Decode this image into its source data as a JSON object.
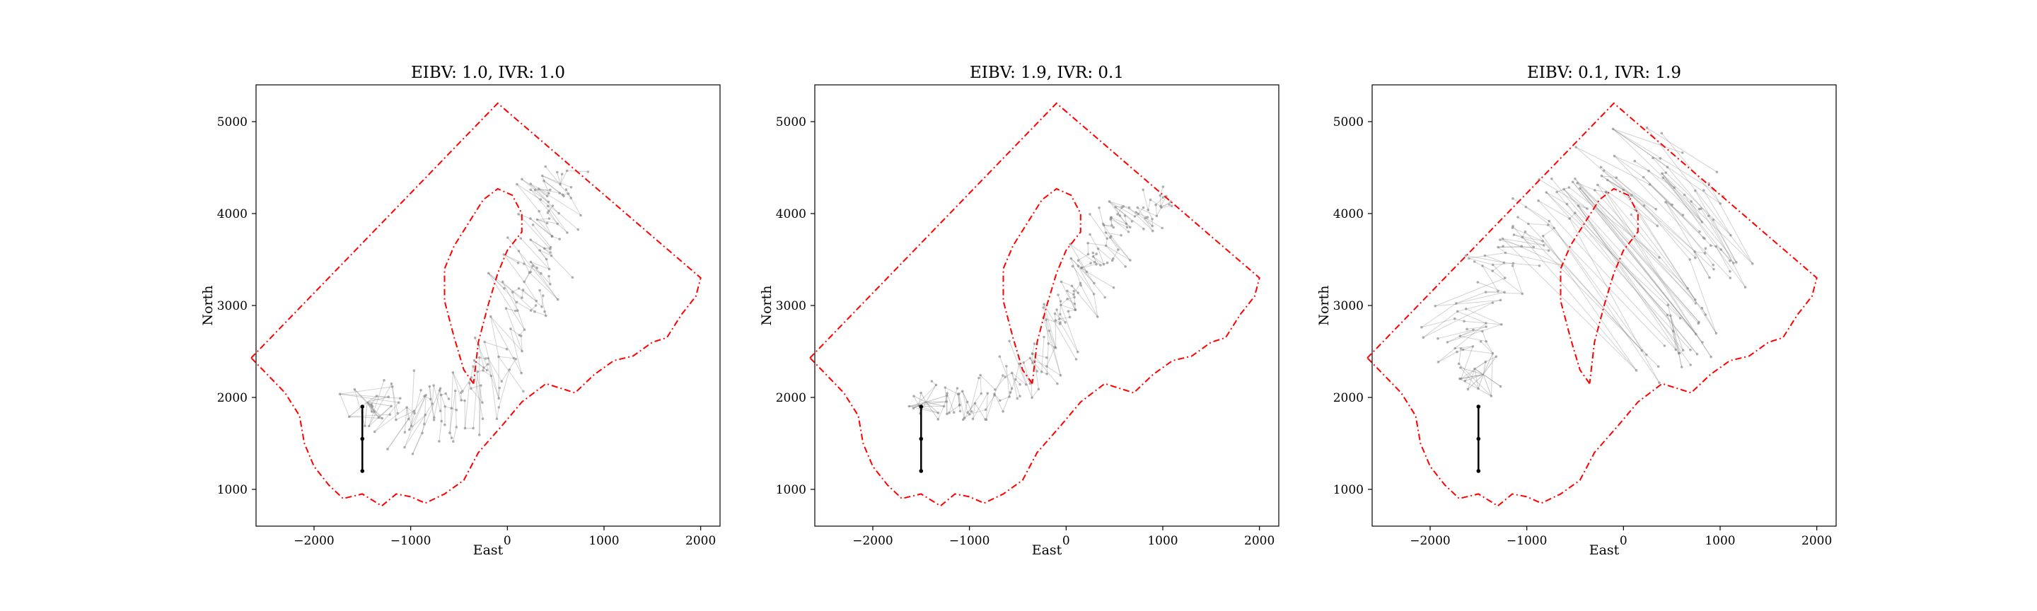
{
  "figure": {
    "background": "#ffffff",
    "boundary_color": "#ff0000",
    "path_color": "#808080",
    "start_color": "#000000"
  },
  "chart_data": [
    {
      "type": "line",
      "title": "EIBV: 1.0, IVR: 1.0",
      "xlabel": "East",
      "ylabel": "North",
      "xlim": [
        -2600,
        2200
      ],
      "ylim": [
        600,
        5400
      ],
      "xticks": [
        -2000,
        -1000,
        0,
        1000,
        2000
      ],
      "yticks": [
        1000,
        2000,
        3000,
        4000,
        5000
      ],
      "xtick_labels": [
        "−2000",
        "−1000",
        "0",
        "1000",
        "2000"
      ],
      "ytick_labels": [
        "1000",
        "2000",
        "3000",
        "4000",
        "5000"
      ],
      "grid": false,
      "series": [
        {
          "role": "trajectories",
          "seed": 11,
          "count": 200,
          "waypoints": [
            [
              -1450,
              1950
            ],
            [
              -1100,
              1800
            ],
            [
              -750,
              1700
            ],
            [
              -400,
              1900
            ],
            [
              -150,
              2400
            ],
            [
              150,
              3000
            ],
            [
              350,
              3600
            ],
            [
              450,
              4100
            ],
            [
              450,
              4450
            ]
          ],
          "spread": 320
        }
      ]
    },
    {
      "type": "line",
      "title": "EIBV: 1.9, IVR: 0.1",
      "xlabel": "East",
      "ylabel": "North",
      "xlim": [
        -2600,
        2200
      ],
      "ylim": [
        600,
        5400
      ],
      "xticks": [
        -2000,
        -1000,
        0,
        1000,
        2000
      ],
      "yticks": [
        1000,
        2000,
        3000,
        4000,
        5000
      ],
      "xtick_labels": [
        "−2000",
        "−1000",
        "0",
        "1000",
        "2000"
      ],
      "ytick_labels": [
        "1000",
        "2000",
        "3000",
        "4000",
        "5000"
      ],
      "grid": false,
      "series": [
        {
          "role": "trajectories",
          "seed": 23,
          "count": 200,
          "waypoints": [
            [
              -1450,
              1950
            ],
            [
              -1000,
              1950
            ],
            [
              -500,
              2100
            ],
            [
              -150,
              2600
            ],
            [
              150,
              3200
            ],
            [
              350,
              3700
            ],
            [
              600,
              4000
            ],
            [
              1000,
              4100
            ]
          ],
          "spread": 240
        }
      ]
    },
    {
      "type": "line",
      "title": "EIBV: 0.1, IVR: 1.9",
      "xlabel": "East",
      "ylabel": "North",
      "xlim": [
        -2600,
        2200
      ],
      "ylim": [
        600,
        5400
      ],
      "xticks": [
        -2000,
        -1000,
        0,
        1000,
        2000
      ],
      "yticks": [
        1000,
        2000,
        3000,
        4000,
        5000
      ],
      "xtick_labels": [
        "−2000",
        "−1000",
        "0",
        "1000",
        "2000"
      ],
      "ytick_labels": [
        "1000",
        "2000",
        "3000",
        "4000",
        "5000"
      ],
      "grid": false,
      "series": [
        {
          "role": "trajectories",
          "seed": 37,
          "count": 200,
          "waypoints": [
            [
              -1450,
              2250
            ],
            [
              -1800,
              2700
            ],
            [
              -1300,
              3300
            ],
            [
              -900,
              3900
            ],
            [
              -400,
              4300
            ],
            [
              200,
              4500
            ],
            [
              700,
              4200
            ],
            [
              1000,
              3500
            ],
            [
              800,
              2800
            ],
            [
              300,
              2200
            ]
          ],
          "spread": 380
        }
      ]
    }
  ],
  "shared": {
    "start_path": [
      [
        -1500,
        1200
      ],
      [
        -1500,
        1550
      ],
      [
        -1500,
        1900
      ]
    ],
    "outer_boundary": [
      [
        -2650,
        2430
      ],
      [
        -2300,
        2050
      ],
      [
        -2150,
        1800
      ],
      [
        -2100,
        1500
      ],
      [
        -2000,
        1250
      ],
      [
        -1850,
        1050
      ],
      [
        -1700,
        900
      ],
      [
        -1500,
        950
      ],
      [
        -1300,
        820
      ],
      [
        -1150,
        950
      ],
      [
        -1000,
        920
      ],
      [
        -850,
        850
      ],
      [
        -650,
        950
      ],
      [
        -450,
        1100
      ],
      [
        -300,
        1400
      ],
      [
        -50,
        1700
      ],
      [
        150,
        1950
      ],
      [
        400,
        2150
      ],
      [
        700,
        2050
      ],
      [
        900,
        2250
      ],
      [
        1100,
        2400
      ],
      [
        1300,
        2450
      ],
      [
        1500,
        2600
      ],
      [
        1650,
        2650
      ],
      [
        1800,
        2900
      ],
      [
        1950,
        3100
      ],
      [
        2000,
        3300
      ],
      [
        -100,
        5200
      ],
      [
        -2650,
        2430
      ]
    ],
    "inner_boundary": [
      [
        -350,
        2150
      ],
      [
        -450,
        2300
      ],
      [
        -550,
        2650
      ],
      [
        -650,
        3050
      ],
      [
        -650,
        3400
      ],
      [
        -550,
        3650
      ],
      [
        -400,
        3900
      ],
      [
        -250,
        4150
      ],
      [
        -100,
        4270
      ],
      [
        50,
        4200
      ],
      [
        150,
        4000
      ],
      [
        150,
        3800
      ],
      [
        0,
        3600
      ],
      [
        -100,
        3350
      ],
      [
        -200,
        3000
      ],
      [
        -300,
        2600
      ],
      [
        -350,
        2150
      ]
    ]
  }
}
